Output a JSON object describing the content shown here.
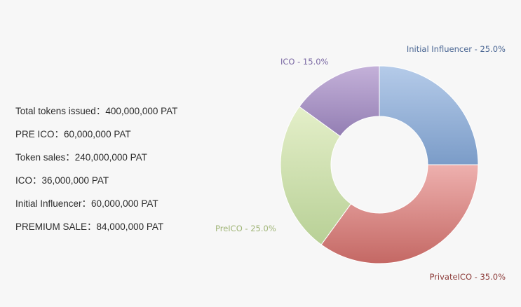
{
  "stats": [
    "Total tokens issued：400,000,000 PAT",
    "PRE ICO：60,000,000 PAT",
    "Token sales：240,000,000 PAT",
    "ICO：36,000,000 PAT",
    "Initial Influencer：60,000,000 PAT",
    "PREMIUM SALE：84,000,000 PAT"
  ],
  "chart_data": {
    "type": "pie",
    "title": "",
    "donut": true,
    "start_angle_deg": 0,
    "direction": "clockwise",
    "slices": [
      {
        "label": "Initial Influencer - 25.0%",
        "value": 25.0,
        "color_top": "#b5cbe9",
        "color_bottom": "#7b9cc8",
        "label_color": "#4a6693"
      },
      {
        "label": "PrivateICO - 35.0%",
        "value": 35.0,
        "color_top": "#eeb0ae",
        "color_bottom": "#c46864",
        "label_color": "#8c3b39"
      },
      {
        "label": "PreICO - 25.0%",
        "value": 25.0,
        "color_top": "#e4efc9",
        "color_bottom": "#b8d096",
        "label_color": "#a0b577"
      },
      {
        "label": "ICO - 15.0%",
        "value": 15.0,
        "color_top": "#c4b1d9",
        "color_bottom": "#937eb3",
        "label_color": "#7a68a3"
      }
    ]
  }
}
